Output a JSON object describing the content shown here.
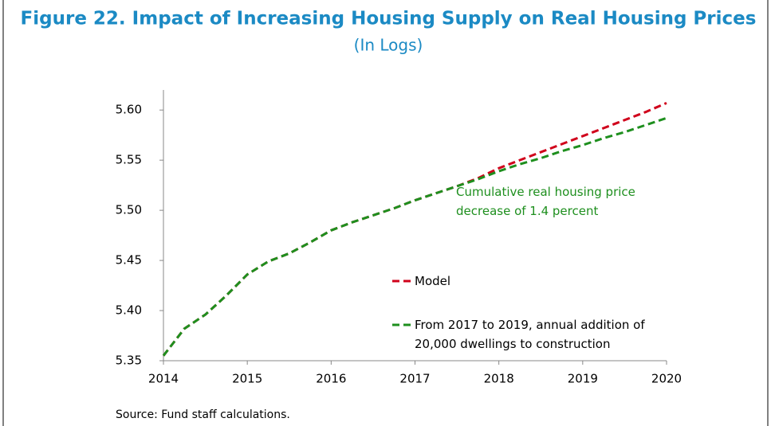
{
  "chart_data": {
    "type": "line",
    "title": "Figure 22. Impact of Increasing Housing Supply on Real Housing Prices",
    "subtitle": "(In Logs)",
    "annotation": "Cumulative real housing price decrease of 1.4 percent",
    "source": "Source: Fund staff calculations.",
    "x": [
      2014,
      2014.25,
      2014.5,
      2014.75,
      2015,
      2015.25,
      2015.5,
      2015.75,
      2016,
      2016.25,
      2016.5,
      2016.75,
      2017,
      2017.25,
      2017.5,
      2017.75,
      2018,
      2018.25,
      2018.5,
      2018.75,
      2019,
      2019.25,
      2019.5,
      2019.75,
      2020
    ],
    "series": [
      {
        "name": "Model",
        "color": "#d0021b",
        "values": [
          5.355,
          5.382,
          5.396,
          5.415,
          5.436,
          5.449,
          5.457,
          5.468,
          5.48,
          5.488,
          5.495,
          5.502,
          5.51,
          5.517,
          5.524,
          5.532,
          5.542,
          5.55,
          5.558,
          5.566,
          5.574,
          5.582,
          5.59,
          5.598,
          5.607
        ]
      },
      {
        "name": "From 2017 to 2019, annual addition of 20,000 dwellings to construction",
        "color": "#1e8f1e",
        "values": [
          5.355,
          5.382,
          5.396,
          5.415,
          5.436,
          5.449,
          5.457,
          5.468,
          5.48,
          5.488,
          5.495,
          5.502,
          5.51,
          5.517,
          5.524,
          5.531,
          5.539,
          5.546,
          5.552,
          5.559,
          5.565,
          5.572,
          5.578,
          5.585,
          5.592
        ]
      }
    ],
    "dashed": true,
    "xlim": [
      2014,
      2020
    ],
    "xticks": [
      2014,
      2015,
      2016,
      2017,
      2018,
      2019,
      2020
    ],
    "ylim": [
      5.35,
      5.62
    ],
    "yticks": [
      5.35,
      {
        "value": 5.4,
        "label": "5.40"
      },
      5.45,
      {
        "value": 5.5,
        "label": "5.50"
      },
      5.55,
      {
        "value": 5.6,
        "label": "5.60"
      }
    ],
    "grid": false
  }
}
